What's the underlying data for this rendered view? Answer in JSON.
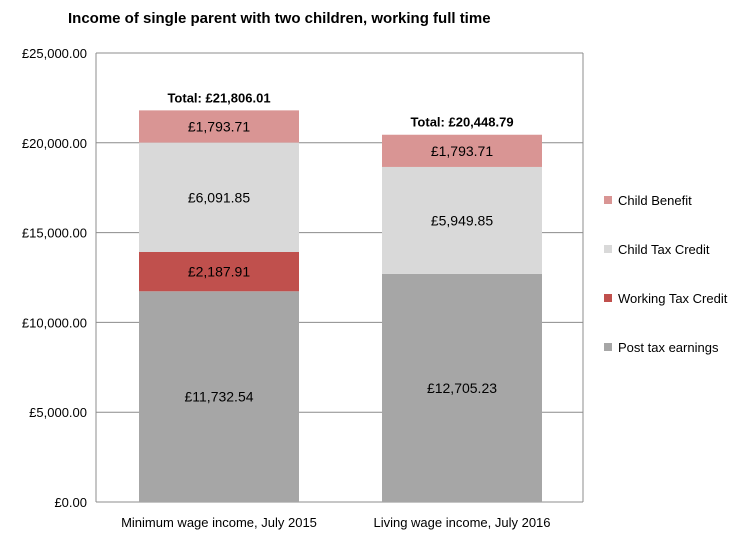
{
  "chart_data": {
    "type": "bar",
    "stacked": true,
    "title": "Income of single parent with two children, working full time",
    "xlabel": "",
    "ylabel": "",
    "ylim": [
      0,
      25000
    ],
    "y_tick_step": 5000,
    "y_tick_labels": [
      "£0.00",
      "£5,000.00",
      "£10,000.00",
      "£15,000.00",
      "£20,000.00",
      "£25,000.00"
    ],
    "grid": true,
    "legend_position": "right",
    "categories": [
      "Minimum wage income, July 2015",
      "Living wage income, July 2016"
    ],
    "totals": [
      {
        "label": "Total: £21,806.01",
        "value": 21806.01
      },
      {
        "label": "Total: £20,448.79",
        "value": 20448.79
      }
    ],
    "series": [
      {
        "name": "Post tax earnings",
        "color": "#a6a6a6",
        "values": [
          11732.54,
          12705.23
        ],
        "labels": [
          "£11,732.54",
          "£12,705.23"
        ]
      },
      {
        "name": "Working Tax Credit",
        "color": "#c0504d",
        "values": [
          2187.91,
          0
        ],
        "labels": [
          "£2,187.91",
          ""
        ]
      },
      {
        "name": "Child Tax Credit",
        "color": "#d9d9d9",
        "values": [
          6091.85,
          5949.85
        ],
        "labels": [
          "£6,091.85",
          "£5,949.85"
        ]
      },
      {
        "name": "Child Benefit",
        "color": "#d99594",
        "values": [
          1793.71,
          1793.71
        ],
        "labels": [
          "£1,793.71",
          "£1,793.71"
        ]
      }
    ],
    "legend_order": [
      "Child Benefit",
      "Child Tax Credit",
      "Working Tax Credit",
      "Post tax earnings"
    ]
  }
}
